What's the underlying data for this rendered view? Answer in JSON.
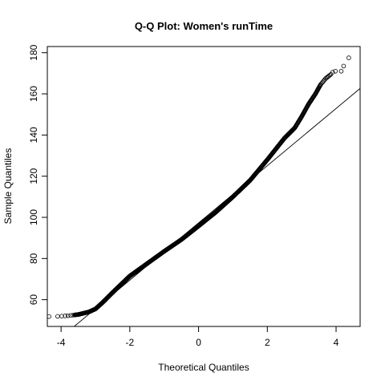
{
  "chart_data": {
    "type": "scatter",
    "subtype": "qq-plot",
    "title": "Q-Q Plot: Women's runTime",
    "xlabel": "Theoretical Quantiles",
    "ylabel": "Sample Quantiles",
    "xlim": [
      -4.4,
      4.7
    ],
    "ylim": [
      47,
      183
    ],
    "x_ticks": [
      -4,
      -2,
      0,
      2,
      4
    ],
    "y_ticks": [
      60,
      80,
      100,
      120,
      140,
      160,
      180
    ],
    "grid": false,
    "legend": "none",
    "marker": "open-circle",
    "reference_line": {
      "intercept": 97.3,
      "slope": 13.9
    },
    "curve_knots": [
      [
        -4.35,
        51.8
      ],
      [
        -4.1,
        51.9
      ],
      [
        -3.8,
        52.2
      ],
      [
        -3.5,
        52.8
      ],
      [
        -3.2,
        54.0
      ],
      [
        -3.0,
        55.5
      ],
      [
        -2.8,
        58.5
      ],
      [
        -2.5,
        63.5
      ],
      [
        -2.0,
        71.5
      ],
      [
        -1.5,
        77.5
      ],
      [
        -1.0,
        83.5
      ],
      [
        -0.5,
        89.2
      ],
      [
        0.0,
        95.8
      ],
      [
        0.5,
        102.5
      ],
      [
        1.0,
        110.0
      ],
      [
        1.5,
        118.0
      ],
      [
        2.0,
        128.0
      ],
      [
        2.5,
        138.5
      ],
      [
        2.8,
        143.5
      ],
      [
        3.0,
        149.0
      ],
      [
        3.2,
        155.0
      ],
      [
        3.4,
        160.0
      ],
      [
        3.55,
        164.5
      ],
      [
        3.7,
        167.5
      ],
      [
        3.85,
        169.5
      ]
    ],
    "tail_points": [
      [
        3.9,
        170.5
      ],
      [
        3.98,
        171.0
      ],
      [
        4.15,
        171.0
      ],
      [
        4.22,
        173.5
      ],
      [
        4.37,
        177.5
      ]
    ]
  },
  "colors": {
    "points": "#000000",
    "line": "#000000",
    "axes": "#000000",
    "background": "#ffffff"
  }
}
